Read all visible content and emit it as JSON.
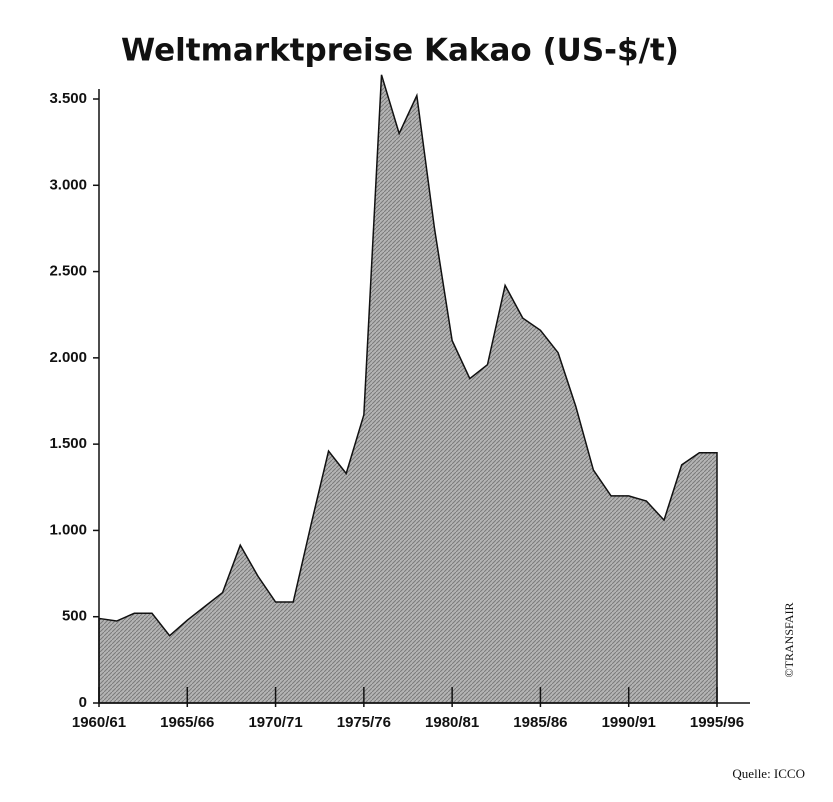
{
  "chart_data": {
    "type": "area",
    "title": "Weltmarktpreise Kakao (US-$/t)",
    "categories": [
      "1960/61",
      null,
      null,
      null,
      null,
      "1965/66",
      null,
      null,
      null,
      null,
      "1970/71",
      null,
      null,
      null,
      null,
      "1975/76",
      null,
      null,
      null,
      null,
      "1980/81",
      null,
      null,
      null,
      null,
      "1985/86",
      null,
      null,
      null,
      null,
      "1990/91",
      null,
      null,
      null,
      null,
      "1995/96"
    ],
    "values": [
      490,
      475,
      520,
      520,
      390,
      480,
      560,
      640,
      915,
      735,
      585,
      585,
      1030,
      1460,
      1330,
      1670,
      3640,
      3300,
      3520,
      2750,
      2100,
      1880,
      1960,
      2420,
      2230,
      2160,
      2030,
      1720,
      1350,
      1200,
      1200,
      1170,
      1060,
      1380,
      1450,
      1450
    ],
    "color": "#a8a8a8",
    "ylim": [
      0,
      3500
    ],
    "yticks": [
      0,
      500,
      {
        "value": 1000,
        "label": "1.000"
      },
      {
        "value": 1500,
        "label": "1.500"
      },
      {
        "value": 2000,
        "label": "2.000"
      },
      {
        "value": 2500,
        "label": "2.500"
      },
      {
        "value": 3000,
        "label": "3.000"
      },
      {
        "value": 3500,
        "label": "3.500"
      }
    ],
    "source": "Quelle: ICCO",
    "copyright": "©TRANSFAIR"
  }
}
